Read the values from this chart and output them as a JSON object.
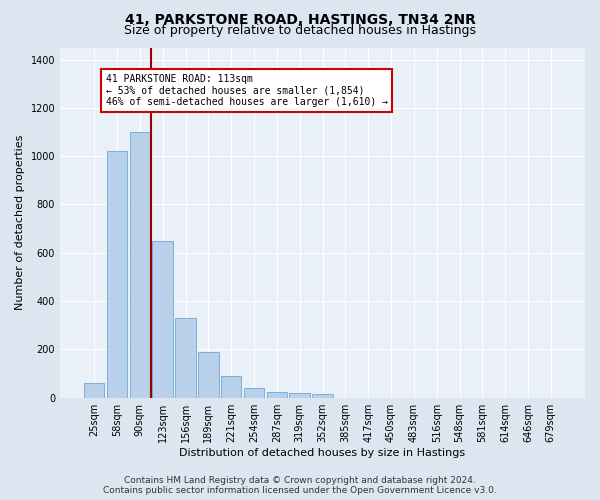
{
  "title": "41, PARKSTONE ROAD, HASTINGS, TN34 2NR",
  "subtitle": "Size of property relative to detached houses in Hastings",
  "xlabel": "Distribution of detached houses by size in Hastings",
  "ylabel": "Number of detached properties",
  "bar_labels": [
    "25sqm",
    "58sqm",
    "90sqm",
    "123sqm",
    "156sqm",
    "189sqm",
    "221sqm",
    "254sqm",
    "287sqm",
    "319sqm",
    "352sqm",
    "385sqm",
    "417sqm",
    "450sqm",
    "483sqm",
    "516sqm",
    "548sqm",
    "581sqm",
    "614sqm",
    "646sqm",
    "679sqm"
  ],
  "bar_values": [
    60,
    1020,
    1100,
    650,
    330,
    190,
    90,
    40,
    25,
    20,
    15,
    0,
    0,
    0,
    0,
    0,
    0,
    0,
    0,
    0,
    0
  ],
  "bar_color": "#b8d0ea",
  "bar_edge_color": "#6aaad4",
  "vline_color": "#990000",
  "ylim": [
    0,
    1450
  ],
  "yticks": [
    0,
    200,
    400,
    600,
    800,
    1000,
    1200,
    1400
  ],
  "annotation_line1": "41 PARKSTONE ROAD: 113sqm",
  "annotation_line2": "← 53% of detached houses are smaller (1,854)",
  "annotation_line3": "46% of semi-detached houses are larger (1,610) →",
  "annotation_box_color": "#ffffff",
  "annotation_box_edge": "#cc0000",
  "footer_line1": "Contains HM Land Registry data © Crown copyright and database right 2024.",
  "footer_line2": "Contains public sector information licensed under the Open Government Licence v3.0.",
  "background_color": "#dce6f0",
  "plot_bg_color": "#eaf0f7",
  "grid_color": "#ffffff",
  "title_fontsize": 10,
  "subtitle_fontsize": 9,
  "tick_fontsize": 7,
  "ylabel_fontsize": 8,
  "xlabel_fontsize": 8,
  "footer_fontsize": 6.5
}
